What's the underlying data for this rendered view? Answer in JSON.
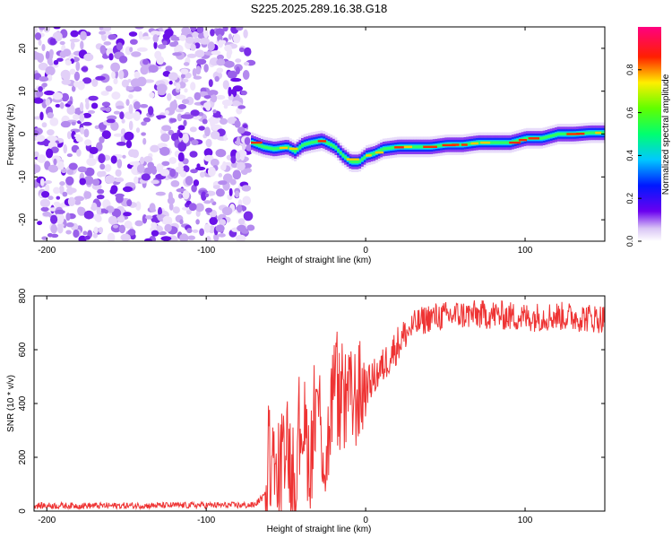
{
  "figure": {
    "title": "S225.2025.289.16.38.G18"
  },
  "chart_data": [
    {
      "type": "heatmap",
      "xlabel": "Height of straight line (km)",
      "ylabel": "Frequency (Hz)",
      "xlim": [
        -208,
        150
      ],
      "ylim": [
        -25,
        25
      ],
      "xticks": [
        -200,
        -100,
        0,
        100
      ],
      "yticks": [
        -20,
        -10,
        0,
        10,
        20
      ],
      "noise_region_x": [
        -208,
        -72
      ],
      "ridge": {
        "x": [
          -72,
          -65,
          -58,
          -50,
          -45,
          -40,
          -35,
          -28,
          -20,
          -15,
          -10,
          -5,
          0,
          5,
          10,
          20,
          30,
          40,
          50,
          60,
          70,
          80,
          90,
          100,
          110,
          120,
          130,
          140,
          150
        ],
        "y": [
          -2,
          -3,
          -3.5,
          -3,
          -4,
          -2.5,
          -2,
          -1.5,
          -3,
          -5,
          -6.5,
          -6.5,
          -5,
          -4.5,
          -3.5,
          -3,
          -3,
          -3,
          -2.5,
          -2.5,
          -2,
          -2,
          -2,
          -1,
          -1,
          0,
          0,
          0.3,
          0.3
        ]
      },
      "colorbar": {
        "label": "Normalized spectral amplitude",
        "ticks": [
          "0.0",
          "0.2",
          "0.4",
          "0.6",
          "0.8"
        ],
        "range": [
          0,
          1
        ]
      }
    },
    {
      "type": "line",
      "xlabel": "Height of straight line (km)",
      "ylabel": "SNR (10 * v/v)",
      "xlim": [
        -208,
        150
      ],
      "ylim": [
        0,
        800
      ],
      "xticks": [
        -200,
        -100,
        0,
        100
      ],
      "yticks": [
        0,
        200,
        400,
        600,
        800
      ],
      "series": [
        {
          "name": "SNR",
          "color": "#ee3333",
          "x": [
            -208,
            -150,
            -100,
            -70,
            -63,
            -60,
            -55,
            -50,
            -45,
            -40,
            -35,
            -30,
            -25,
            -20,
            -15,
            -10,
            0,
            10,
            20,
            30,
            40,
            60,
            80,
            100,
            120,
            150
          ],
          "y": [
            20,
            20,
            22,
            22,
            60,
            220,
            80,
            320,
            70,
            360,
            180,
            420,
            160,
            480,
            380,
            400,
            460,
            530,
            620,
            690,
            720,
            730,
            730,
            720,
            725,
            715
          ]
        }
      ]
    }
  ]
}
